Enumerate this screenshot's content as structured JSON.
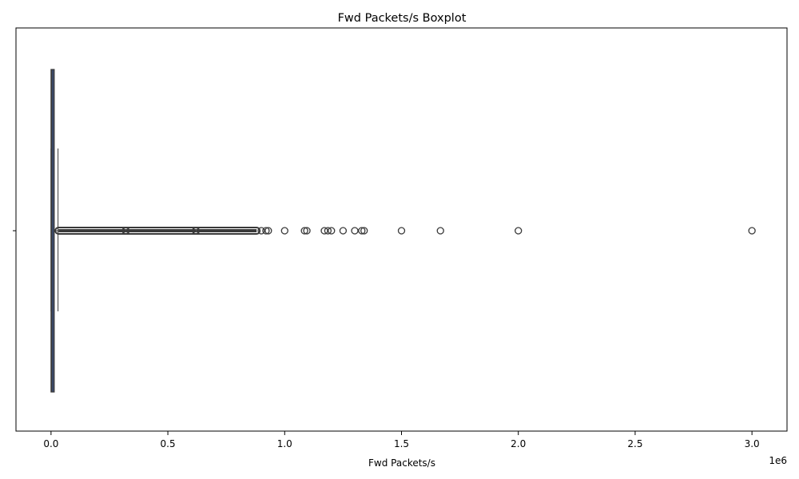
{
  "chart_data": {
    "type": "boxplot",
    "orientation": "horizontal",
    "title": "Fwd Packets/s Boxplot",
    "xlabel": "Fwd Packets/s",
    "ylabel": "",
    "x_scale_offset_label": "1e6",
    "xlim": [
      -150000,
      3150000
    ],
    "xticks": [
      0,
      500000,
      1000000,
      1500000,
      2000000,
      2500000,
      3000000
    ],
    "xtick_labels": [
      "0.0",
      "0.5",
      "1.0",
      "1.5",
      "2.0",
      "2.5",
      "3.0"
    ],
    "grid": false,
    "legend": "none",
    "box": {
      "q1": 0,
      "median": 2500,
      "q3": 12000,
      "whisker_low": 0,
      "whisker_high": 30000
    },
    "outlier_clusters": [
      {
        "start": 32000,
        "end": 320000
      },
      {
        "start": 320000,
        "end": 620000
      },
      {
        "start": 620000,
        "end": 880000
      }
    ],
    "outliers": [
      900000,
      920000,
      930000,
      1000000,
      1085000,
      1095000,
      1170000,
      1185000,
      1200000,
      1250000,
      1300000,
      1330000,
      1340000,
      1500000,
      1666667,
      2000000,
      3000000
    ],
    "colors": {
      "box_fill": "#3b4a6b",
      "box_edge": "#3a3a3a",
      "outlier_edge": "#3a3a3a",
      "axis": "#000000"
    }
  }
}
